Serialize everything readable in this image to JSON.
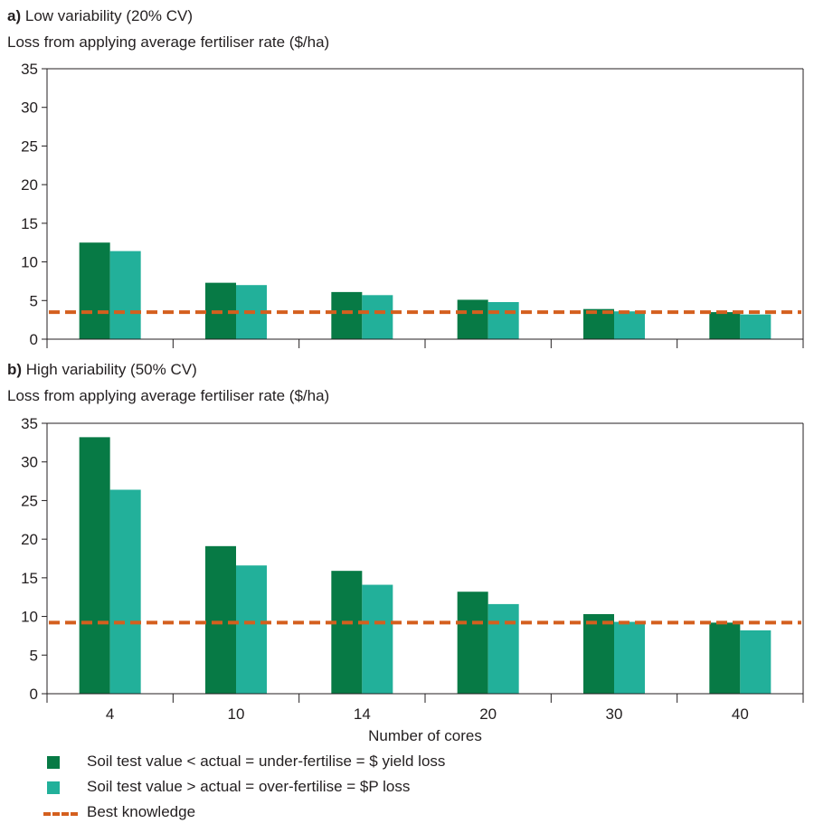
{
  "colors": {
    "yield_loss": "#077a45",
    "p_loss": "#22b09a",
    "best_knowledge": "#d45f1e",
    "axis": "#231f20"
  },
  "legend": {
    "yield_loss": "Soil test value < actual = under-fertilise = $ yield loss",
    "p_loss": "Soil test value > actual = over-fertilise = $P loss",
    "best_knowledge": "Best knowledge"
  },
  "xlabel": "Number of cores",
  "chart_data": [
    {
      "type": "bar",
      "panel_label": "a)",
      "panel_title": "Low variability (20% CV)",
      "ylabel": "Loss from applying average fertiliser rate ($/ha)",
      "categories": [
        "4",
        "10",
        "14",
        "20",
        "30",
        "40"
      ],
      "series": [
        {
          "key": "yield_loss",
          "values": [
            12.5,
            7.3,
            6.1,
            5.1,
            3.9,
            3.5
          ]
        },
        {
          "key": "p_loss",
          "values": [
            11.4,
            7.0,
            5.7,
            4.8,
            3.6,
            3.2
          ]
        }
      ],
      "best_knowledge": 3.5,
      "ylim": [
        0,
        35
      ],
      "yticks": [
        0,
        5,
        10,
        15,
        20,
        25,
        30,
        35
      ],
      "show_xticklabels": false
    },
    {
      "type": "bar",
      "panel_label": "b)",
      "panel_title": "High variability (50% CV)",
      "ylabel": "Loss from applying average fertiliser rate ($/ha)",
      "categories": [
        "4",
        "10",
        "14",
        "20",
        "30",
        "40"
      ],
      "series": [
        {
          "key": "yield_loss",
          "values": [
            33.2,
            19.1,
            15.9,
            13.2,
            10.3,
            9.2
          ]
        },
        {
          "key": "p_loss",
          "values": [
            26.4,
            16.6,
            14.1,
            11.6,
            9.3,
            8.2
          ]
        }
      ],
      "best_knowledge": 9.2,
      "ylim": [
        0,
        35
      ],
      "yticks": [
        0,
        5,
        10,
        15,
        20,
        25,
        30,
        35
      ],
      "show_xticklabels": true
    }
  ]
}
